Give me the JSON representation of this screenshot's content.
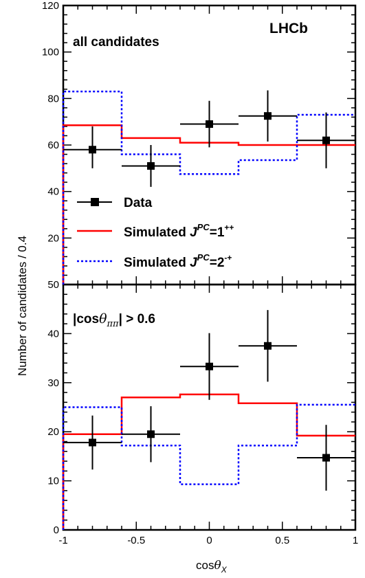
{
  "chart_data": [
    {
      "type": "histogram",
      "panel": "all candidates",
      "ylabel": "Number of candidates / 0.4",
      "ylim": [
        0,
        120
      ],
      "yticks": [
        "20",
        "40",
        "60",
        "80",
        "100",
        "120"
      ],
      "xlim": [
        -1,
        1
      ],
      "bin_edges": [
        -1,
        -0.6,
        -0.2,
        0.2,
        0.6,
        1.0
      ],
      "series": [
        {
          "name": "Data",
          "style": "points",
          "color": "#000000",
          "x": [
            -0.8,
            -0.4,
            0.0,
            0.4,
            0.8
          ],
          "values": [
            58,
            51,
            69,
            72.5,
            62
          ],
          "err_low": [
            8,
            9,
            10,
            11,
            12
          ],
          "err_high": [
            10,
            9,
            10,
            11,
            12
          ]
        },
        {
          "name": "Simulated J^PC=1^++",
          "style": "step-solid",
          "color": "#ff0000",
          "values": [
            68.5,
            63,
            61,
            60,
            60
          ]
        },
        {
          "name": "Simulated J^PC=2^-+",
          "style": "step-dotted",
          "color": "#0000ff",
          "values": [
            83,
            56,
            47.5,
            53.5,
            73
          ]
        }
      ],
      "annotations": [
        "LHCb"
      ]
    },
    {
      "type": "histogram",
      "panel": "|cosθππ| > 0.6",
      "ylim": [
        0,
        50
      ],
      "yticks": [
        "0",
        "10",
        "20",
        "30",
        "40",
        "50"
      ],
      "xlim": [
        -1,
        1
      ],
      "xticks": [
        "-1",
        "-0.5",
        "0",
        "0.5",
        "1"
      ],
      "xlabel": "cosθX",
      "bin_edges": [
        -1,
        -0.6,
        -0.2,
        0.2,
        0.6,
        1.0
      ],
      "series": [
        {
          "name": "Data",
          "style": "points",
          "color": "#000000",
          "x": [
            -0.8,
            -0.4,
            0.0,
            0.4,
            0.8
          ],
          "values": [
            17.8,
            19.5,
            33.3,
            37.5,
            14.7
          ],
          "err_low": [
            5.5,
            5.7,
            6.8,
            7.3,
            6.7
          ],
          "err_high": [
            5.5,
            5.7,
            6.8,
            7.3,
            6.7
          ]
        },
        {
          "name": "Simulated J^PC=1^++",
          "style": "step-solid",
          "color": "#ff0000",
          "values": [
            19.5,
            27,
            27.6,
            25.8,
            19.2
          ]
        },
        {
          "name": "Simulated J^PC=2^-+",
          "style": "step-dotted",
          "color": "#0000ff",
          "values": [
            25,
            17.2,
            9.3,
            17.2,
            25.5
          ]
        }
      ]
    }
  ],
  "labels": {
    "top_panel": "all candidates",
    "brand": "LHCb",
    "bottom_panel_abs": "|cos",
    "bottom_panel_theta": "θ",
    "bottom_panel_sub": "ππ",
    "bottom_panel_rest": "| > 0.6",
    "ylabel": "Number of candidates / 0.4",
    "xlabel_cos": "cos",
    "xlabel_theta": "θ",
    "xlabel_sub": "X"
  },
  "legend": [
    {
      "label_main": "Data",
      "label_sup": "",
      "label_tail": ""
    },
    {
      "label_main": "Simulated ",
      "label_j": "J",
      "label_pc": "PC",
      "label_tail": "=1",
      "label_sup": "++"
    },
    {
      "label_main": "Simulated ",
      "label_j": "J",
      "label_pc": "PC",
      "label_tail": "=2",
      "label_sup": "-+"
    }
  ]
}
